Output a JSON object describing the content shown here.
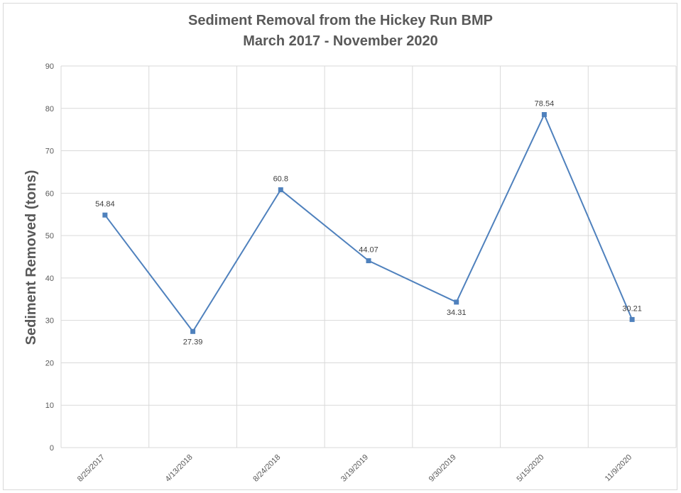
{
  "chart_data": {
    "type": "line",
    "title": "Sediment Removal from the Hickey Run BMP",
    "subtitle": "March 2017 - November 2020",
    "xlabel": "",
    "ylabel": "Sediment Removed (tons)",
    "categories": [
      "8/25/2017",
      "4/13/2018",
      "8/24/2018",
      "3/19/2019",
      "9/30/2019",
      "5/15/2020",
      "11/9/2020"
    ],
    "series": [
      {
        "values": [
          54.84,
          27.39,
          60.8,
          44.07,
          34.31,
          78.54,
          30.21
        ],
        "labels": [
          "54.84",
          "27.39",
          "60.8",
          "44.07",
          "34.31",
          "78.54",
          "30.21"
        ],
        "color": "#4f81bd",
        "marker": "square"
      }
    ],
    "ylim": [
      0,
      90
    ],
    "yticks": [
      0,
      10,
      20,
      30,
      40,
      50,
      60,
      70,
      80,
      90
    ],
    "grid": true,
    "legend": "none"
  }
}
